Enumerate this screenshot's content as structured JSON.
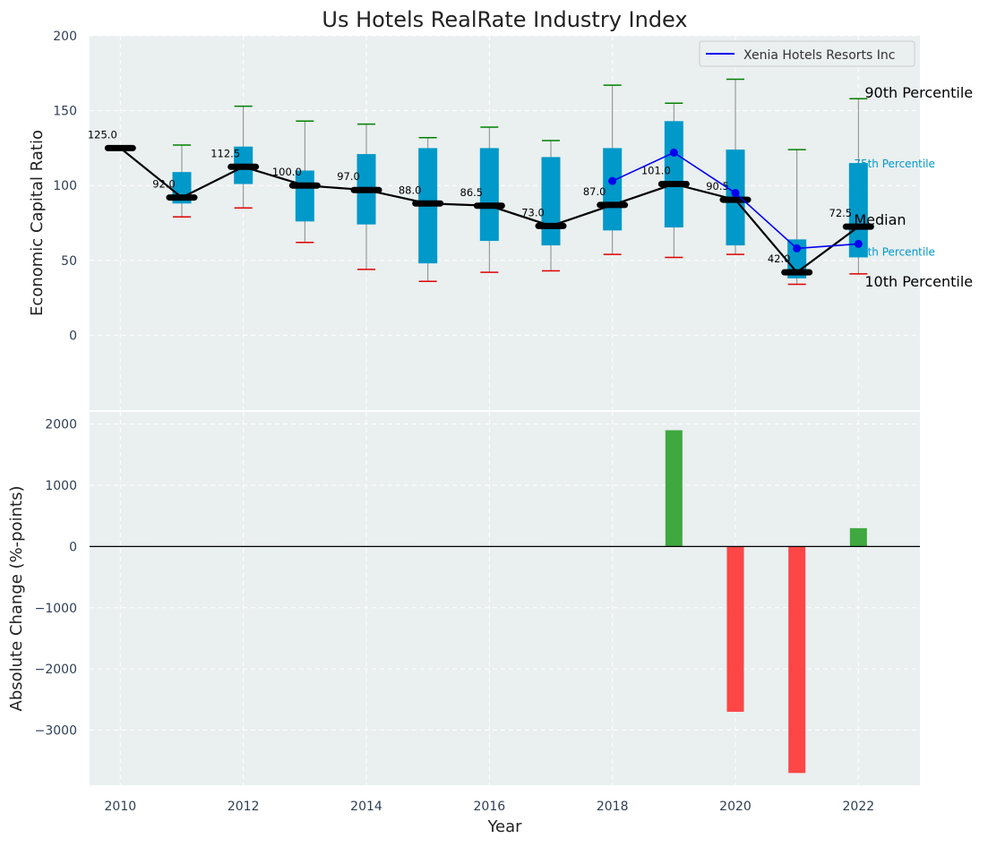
{
  "chart_data": [
    {
      "type": "box-line",
      "title": "Us Hotels RealRate Industry Index",
      "ylabel": "Economic Capital Ratio",
      "ylim": [
        -50,
        200
      ],
      "xlim": [
        2009.5,
        2023
      ],
      "yticks": [
        0,
        50,
        100,
        150,
        200
      ],
      "grid": true,
      "legend": {
        "position": "top-right",
        "entries": [
          "Xenia Hotels Resorts Inc"
        ]
      },
      "x": [
        2010,
        2011,
        2012,
        2013,
        2014,
        2015,
        2016,
        2017,
        2018,
        2019,
        2020,
        2021,
        2022
      ],
      "median": [
        125.0,
        92.0,
        112.5,
        100.0,
        97.0,
        88.0,
        86.5,
        73.0,
        87.0,
        101.0,
        90.5,
        42.0,
        72.5
      ],
      "median_labels": [
        "125.0",
        "92.0",
        "112.5",
        "100.0",
        "97.0",
        "88.0",
        "86.5",
        "73.0",
        "87.0",
        "101.0",
        "90.5",
        "42.0",
        "72.5"
      ],
      "p10": [
        null,
        79,
        85,
        62,
        44,
        36,
        42,
        43,
        54,
        52,
        54,
        34,
        41
      ],
      "p25": [
        null,
        88,
        101,
        76,
        74,
        48,
        63,
        60,
        70,
        72,
        60,
        38,
        52
      ],
      "p75": [
        null,
        109,
        126,
        110,
        121,
        125,
        125,
        119,
        125,
        143,
        124,
        64,
        115
      ],
      "p90": [
        null,
        127,
        153,
        143,
        141,
        132,
        139,
        130,
        167,
        155,
        171,
        124,
        158
      ],
      "company": {
        "name": "Xenia Hotels Resorts Inc",
        "x": [
          2018,
          2019,
          2020,
          2021,
          2022
        ],
        "values": [
          103,
          122,
          95,
          58,
          61
        ]
      },
      "annotations": {
        "p90": "90th Percentile",
        "p75": "75th Percentile",
        "median": "Median",
        "p25": "25th Percentile",
        "p10": "10th Percentile"
      },
      "colors": {
        "box": "#0099c9",
        "median": "#000000",
        "company": "#0000ee",
        "p90_cap": "#008000",
        "p10_cap": "#e00000",
        "whisker": "#888888",
        "quartile_text": "#0099c9"
      }
    },
    {
      "type": "bar",
      "xlabel": "Year",
      "ylabel": "Absolute Change (%-points)",
      "ylim": [
        -3900,
        2200
      ],
      "yticks": [
        -3000,
        -2000,
        -1000,
        0,
        1000,
        2000
      ],
      "xticks": [
        2010,
        2012,
        2014,
        2016,
        2018,
        2020,
        2022
      ],
      "grid": true,
      "x": [
        2019,
        2020,
        2021,
        2022
      ],
      "values": [
        1900,
        -2700,
        -3700,
        300
      ],
      "colors": {
        "positive": "#2ca02c",
        "negative": "#ff3333",
        "zero_line": "#000000"
      }
    }
  ]
}
